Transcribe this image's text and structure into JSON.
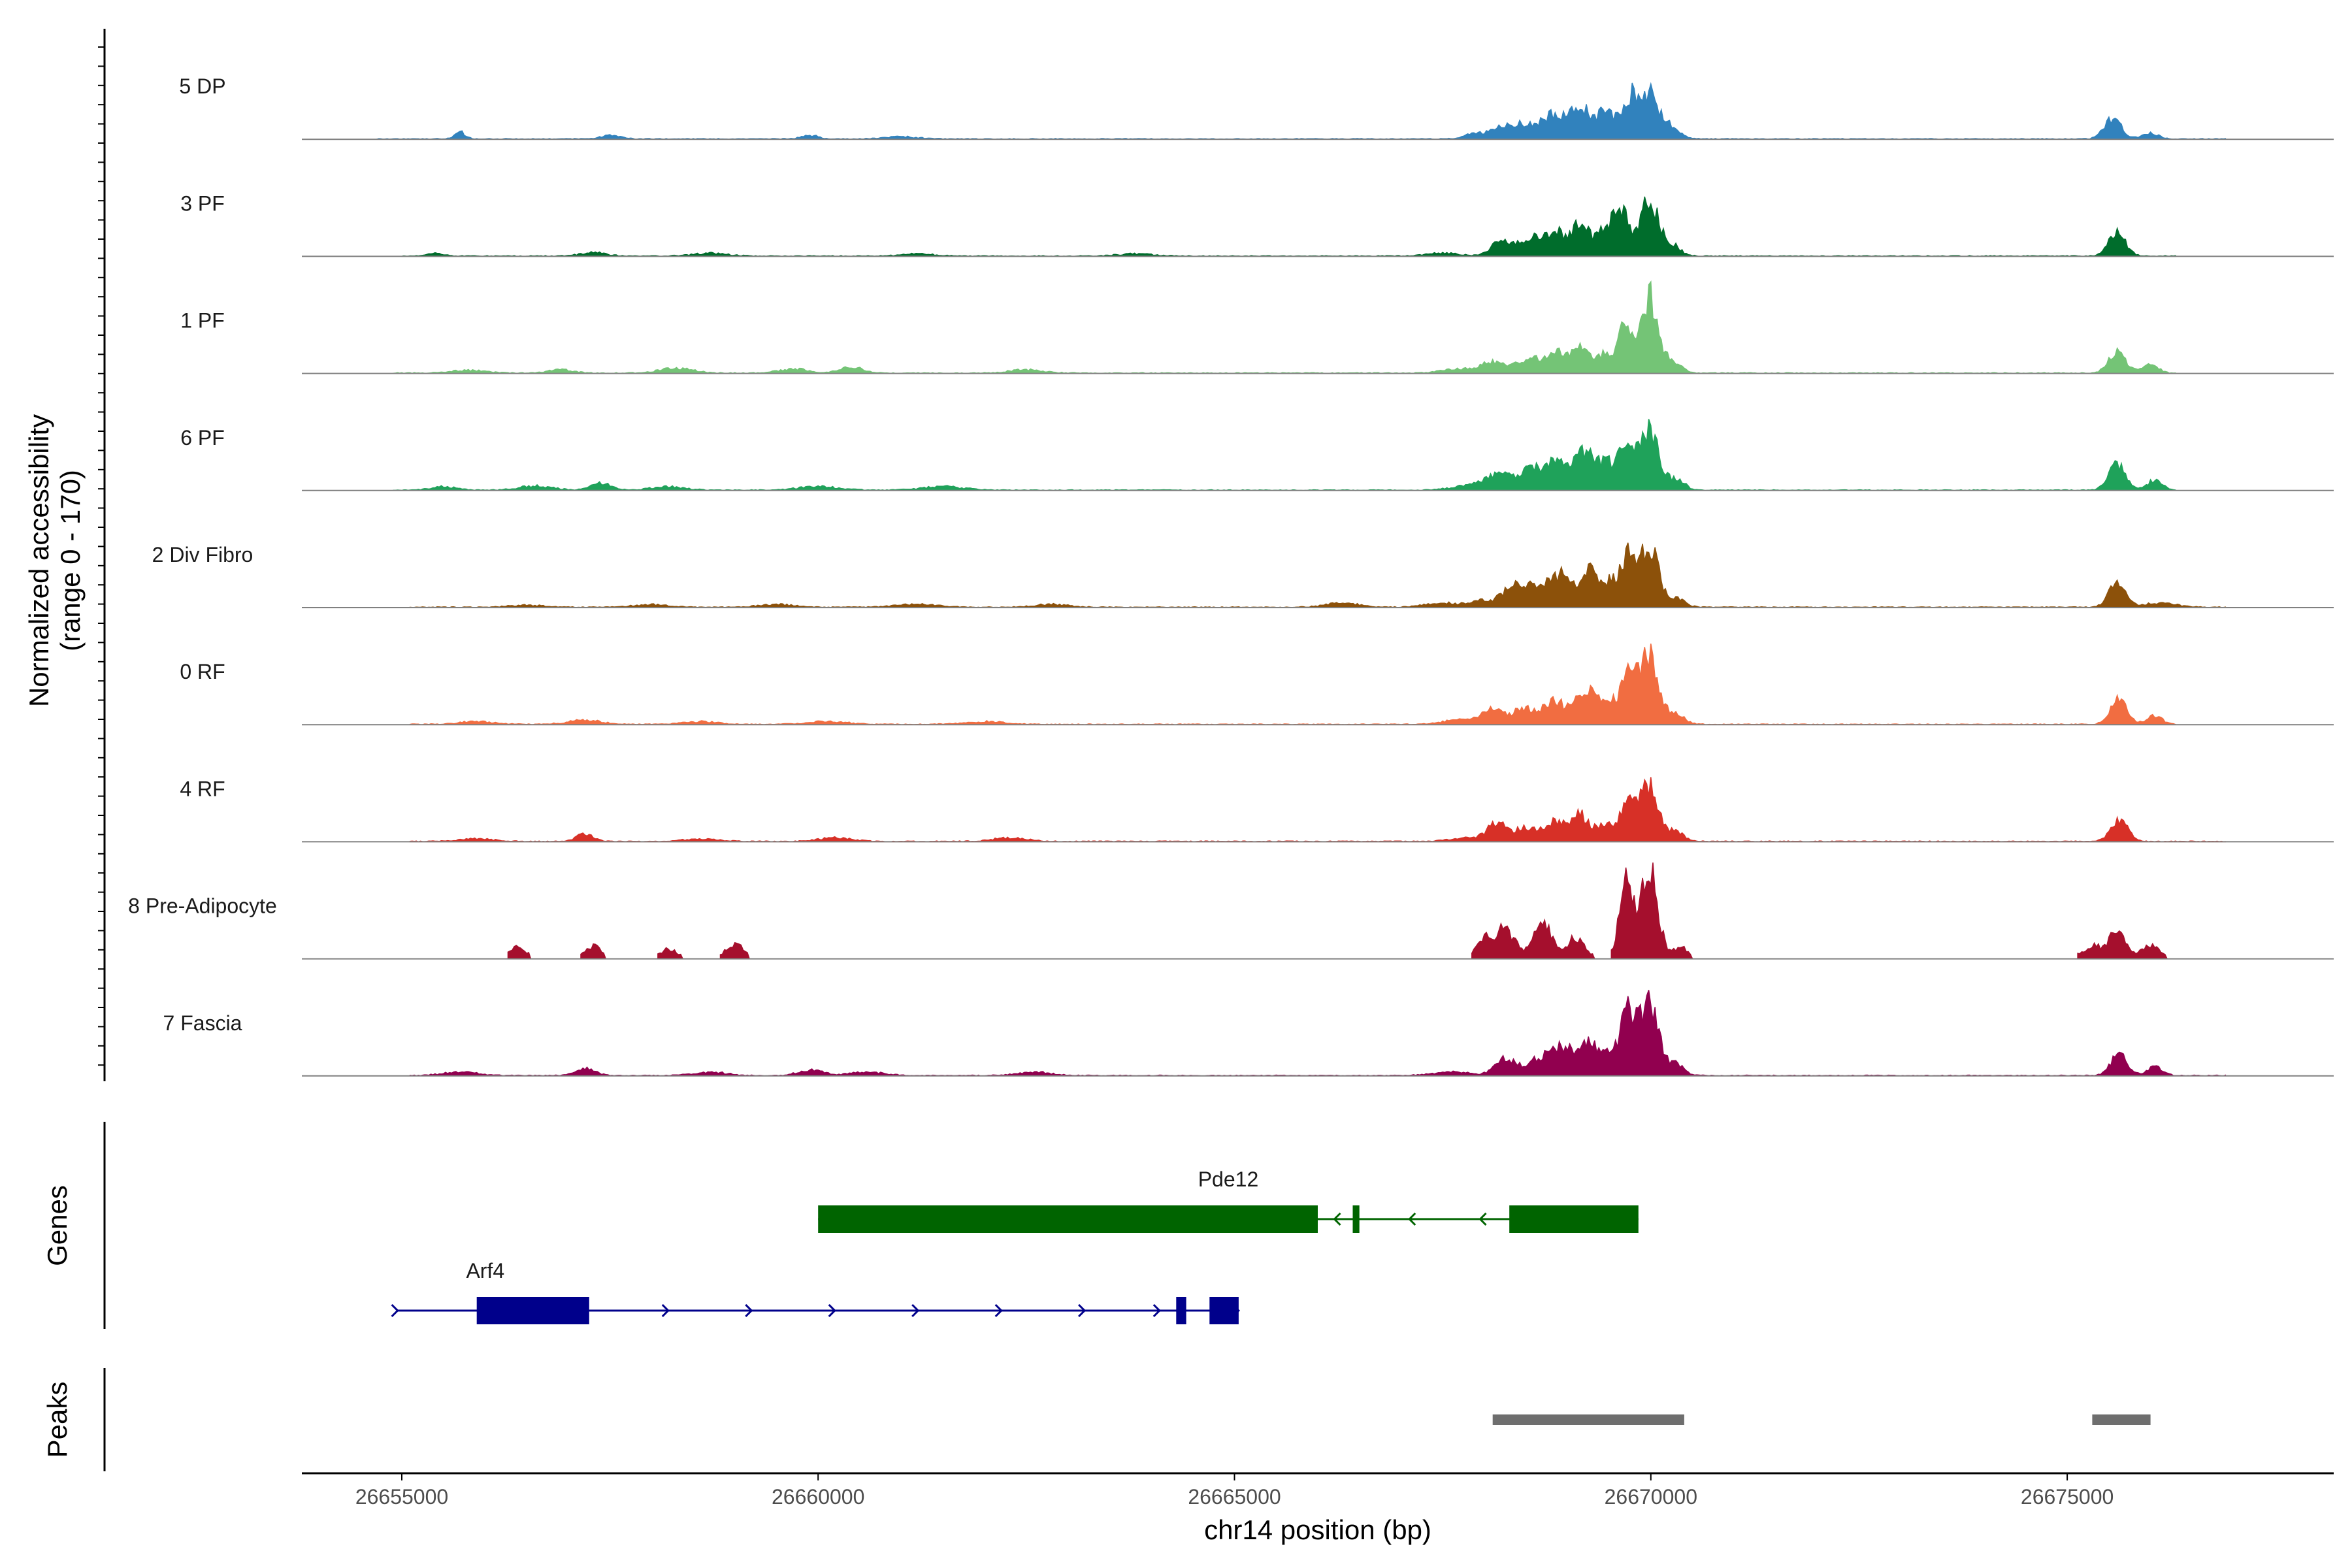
{
  "chart_data": {
    "type": "area",
    "title": "",
    "region": "chr14",
    "xlabel": "chr14 position (bp)",
    "ylabel_lines": [
      "Normalized accessibility",
      "(range 0 - 170)"
    ],
    "yrange": [
      0,
      170
    ],
    "xlim": [
      26653800,
      26678200
    ],
    "x_ticks": [
      26655000,
      26660000,
      26665000,
      26670000,
      26675000
    ],
    "x_tick_labels": [
      "26655000",
      "26660000",
      "26665000",
      "26670000",
      "26675000"
    ],
    "panel_labels": {
      "genes": "Genes",
      "peaks": "Peaks"
    },
    "series": [
      {
        "name": "5 DP",
        "color": "#3182BD",
        "coverage_start": 26654700,
        "coverage_end": 26676900,
        "gapped": false,
        "peaks": [
          [
            26655700,
            10,
            60
          ],
          [
            26657500,
            5,
            120
          ],
          [
            26659900,
            5,
            100
          ],
          [
            26661000,
            3,
            200
          ],
          [
            26667900,
            8,
            120
          ],
          [
            26668200,
            18,
            110
          ],
          [
            26668500,
            22,
            150
          ],
          [
            26668850,
            36,
            130
          ],
          [
            26669150,
            48,
            100
          ],
          [
            26669450,
            40,
            110
          ],
          [
            26669750,
            54,
            100
          ],
          [
            26669980,
            64,
            120
          ],
          [
            26670250,
            14,
            100
          ],
          [
            26675550,
            30,
            100
          ],
          [
            26676000,
            8,
            100
          ]
        ]
      },
      {
        "name": "3 PF",
        "color": "#006D2C",
        "coverage_start": 26655000,
        "coverage_end": 26676300,
        "gapped": false,
        "peaks": [
          [
            26655400,
            4,
            100
          ],
          [
            26657300,
            5,
            150
          ],
          [
            26658700,
            4,
            200
          ],
          [
            26661200,
            3,
            200
          ],
          [
            26663800,
            3,
            200
          ],
          [
            26667500,
            4,
            200
          ],
          [
            26668200,
            22,
            110
          ],
          [
            26668550,
            28,
            130
          ],
          [
            26668850,
            36,
            100
          ],
          [
            26669150,
            52,
            100
          ],
          [
            26669450,
            40,
            100
          ],
          [
            26669650,
            62,
            90
          ],
          [
            26669980,
            82,
            110
          ],
          [
            26670250,
            16,
            100
          ],
          [
            26675600,
            34,
            100
          ]
        ]
      },
      {
        "name": "1 PF",
        "color": "#74C476",
        "coverage_start": 26654900,
        "coverage_end": 26676300,
        "gapped": false,
        "peaks": [
          [
            26655800,
            4,
            200
          ],
          [
            26656900,
            5,
            150
          ],
          [
            26658300,
            7,
            200
          ],
          [
            26659700,
            6,
            180
          ],
          [
            26660400,
            9,
            130
          ],
          [
            26662500,
            5,
            200
          ],
          [
            26667700,
            6,
            200
          ],
          [
            26668100,
            16,
            130
          ],
          [
            26668500,
            20,
            150
          ],
          [
            26668850,
            30,
            130
          ],
          [
            26669150,
            36,
            110
          ],
          [
            26669450,
            28,
            110
          ],
          [
            26669700,
            68,
            80
          ],
          [
            26669980,
            112,
            100
          ],
          [
            26670250,
            18,
            100
          ],
          [
            26675600,
            32,
            100
          ],
          [
            26676000,
            14,
            90
          ]
        ]
      },
      {
        "name": "6 PF",
        "color": "#1FA25A",
        "coverage_start": 26654900,
        "coverage_end": 26676300,
        "gapped": false,
        "peaks": [
          [
            26655500,
            5,
            150
          ],
          [
            26656600,
            6,
            200
          ],
          [
            26657400,
            10,
            120
          ],
          [
            26658200,
            5,
            200
          ],
          [
            26660000,
            5,
            250
          ],
          [
            26661500,
            5,
            250
          ],
          [
            26667800,
            6,
            200
          ],
          [
            26668150,
            22,
            140
          ],
          [
            26668550,
            30,
            160
          ],
          [
            26668900,
            40,
            140
          ],
          [
            26669200,
            54,
            110
          ],
          [
            26669450,
            38,
            100
          ],
          [
            26669700,
            72,
            90
          ],
          [
            26669980,
            92,
            110
          ],
          [
            26670300,
            16,
            100
          ],
          [
            26675600,
            38,
            100
          ],
          [
            26676050,
            14,
            90
          ]
        ]
      },
      {
        "name": "2 Div Fibro",
        "color": "#8C510A",
        "coverage_start": 26655100,
        "coverage_end": 26676900,
        "gapped": false,
        "peaks": [
          [
            26656500,
            3,
            200
          ],
          [
            26658000,
            4,
            200
          ],
          [
            26659500,
            4,
            200
          ],
          [
            26661200,
            4,
            250
          ],
          [
            26662800,
            4,
            200
          ],
          [
            26666300,
            6,
            200
          ],
          [
            26667500,
            6,
            200
          ],
          [
            26668000,
            10,
            150
          ],
          [
            26668350,
            30,
            120
          ],
          [
            26668650,
            34,
            130
          ],
          [
            26668950,
            48,
            110
          ],
          [
            26669250,
            56,
            100
          ],
          [
            26669500,
            34,
            100
          ],
          [
            26669720,
            72,
            90
          ],
          [
            26669980,
            88,
            110
          ],
          [
            26670300,
            14,
            100
          ],
          [
            26675600,
            34,
            100
          ],
          [
            26676100,
            6,
            200
          ]
        ]
      },
      {
        "name": "0 RF",
        "color": "#F16D41",
        "coverage_start": 26655100,
        "coverage_end": 26676300,
        "gapped": false,
        "peaks": [
          [
            26655900,
            4,
            200
          ],
          [
            26657200,
            6,
            200
          ],
          [
            26658600,
            4,
            200
          ],
          [
            26660100,
            4,
            250
          ],
          [
            26662000,
            4,
            250
          ],
          [
            26667700,
            6,
            200
          ],
          [
            26668100,
            20,
            140
          ],
          [
            26668500,
            22,
            150
          ],
          [
            26668850,
            32,
            130
          ],
          [
            26669200,
            50,
            110
          ],
          [
            26669450,
            36,
            100
          ],
          [
            26669720,
            76,
            90
          ],
          [
            26669980,
            100,
            110
          ],
          [
            26670300,
            16,
            100
          ],
          [
            26675620,
            38,
            100
          ],
          [
            26676050,
            12,
            90
          ]
        ]
      },
      {
        "name": "4 RF",
        "color": "#D73027",
        "coverage_start": 26655100,
        "coverage_end": 26676900,
        "gapped": false,
        "peaks": [
          [
            26655900,
            4,
            200
          ],
          [
            26657200,
            11,
            100
          ],
          [
            26658600,
            4,
            200
          ],
          [
            26660200,
            5,
            200
          ],
          [
            26662300,
            5,
            200
          ],
          [
            26667800,
            5,
            200
          ],
          [
            26668150,
            26,
            110
          ],
          [
            26668500,
            20,
            130
          ],
          [
            26668850,
            28,
            130
          ],
          [
            26669150,
            38,
            110
          ],
          [
            26669450,
            26,
            100
          ],
          [
            26669720,
            62,
            90
          ],
          [
            26669980,
            86,
            110
          ],
          [
            26670300,
            14,
            100
          ],
          [
            26675620,
            32,
            100
          ]
        ]
      },
      {
        "name": "8 Pre-Adipocyte",
        "color": "#A50F2D",
        "coverage_start": 26655800,
        "coverage_end": 26676600,
        "gapped": true,
        "peaks": [
          [
            26656400,
            16,
            100
          ],
          [
            26657300,
            18,
            100
          ],
          [
            26658200,
            14,
            100
          ],
          [
            26659000,
            22,
            100
          ],
          [
            26668000,
            24,
            100
          ],
          [
            26668250,
            42,
            120
          ],
          [
            26668700,
            50,
            110
          ],
          [
            26669100,
            30,
            110
          ],
          [
            26669700,
            112,
            80
          ],
          [
            26669980,
            132,
            100
          ],
          [
            26670350,
            16,
            100
          ],
          [
            26675300,
            18,
            120
          ],
          [
            26675600,
            38,
            100
          ],
          [
            26676000,
            20,
            100
          ]
        ]
      },
      {
        "name": "7 Fascia",
        "color": "#91004F",
        "coverage_start": 26655100,
        "coverage_end": 26676900,
        "gapped": false,
        "peaks": [
          [
            26655700,
            5,
            200
          ],
          [
            26657200,
            10,
            120
          ],
          [
            26658700,
            5,
            200
          ],
          [
            26659900,
            8,
            150
          ],
          [
            26660600,
            5,
            200
          ],
          [
            26662600,
            5,
            200
          ],
          [
            26667600,
            6,
            200
          ],
          [
            26668250,
            26,
            120
          ],
          [
            26668650,
            24,
            140
          ],
          [
            26668950,
            40,
            130
          ],
          [
            26669250,
            46,
            100
          ],
          [
            26669500,
            28,
            100
          ],
          [
            26669720,
            86,
            90
          ],
          [
            26669980,
            112,
            110
          ],
          [
            26670300,
            16,
            100
          ],
          [
            26675620,
            30,
            100
          ],
          [
            26676050,
            12,
            90
          ]
        ]
      }
    ],
    "genes": [
      {
        "name": "Pde12",
        "strand": "-",
        "color": "#006400",
        "start": 26660000,
        "end": 26669850,
        "exons": [
          [
            26660000,
            26666000
          ],
          [
            26666420,
            26666500
          ],
          [
            26668300,
            26669850
          ]
        ],
        "arrows": [
          26666200,
          26667100,
          26667950
        ]
      },
      {
        "name": "Arf4",
        "strand": "+",
        "color": "#00008B",
        "start": 26654950,
        "end": 26665050,
        "exons": [
          [
            26655900,
            26657250
          ],
          [
            26664300,
            26664420
          ],
          [
            26664700,
            26665050
          ]
        ],
        "arrows": [
          26654950,
          26658200,
          26659200,
          26660200,
          26661200,
          26662200,
          26663200,
          26664100,
          26665050
        ]
      }
    ],
    "peaks": [
      [
        26668100,
        26670400
      ],
      [
        26675300,
        26676000
      ]
    ],
    "peak_color": "#6E6E6E"
  }
}
